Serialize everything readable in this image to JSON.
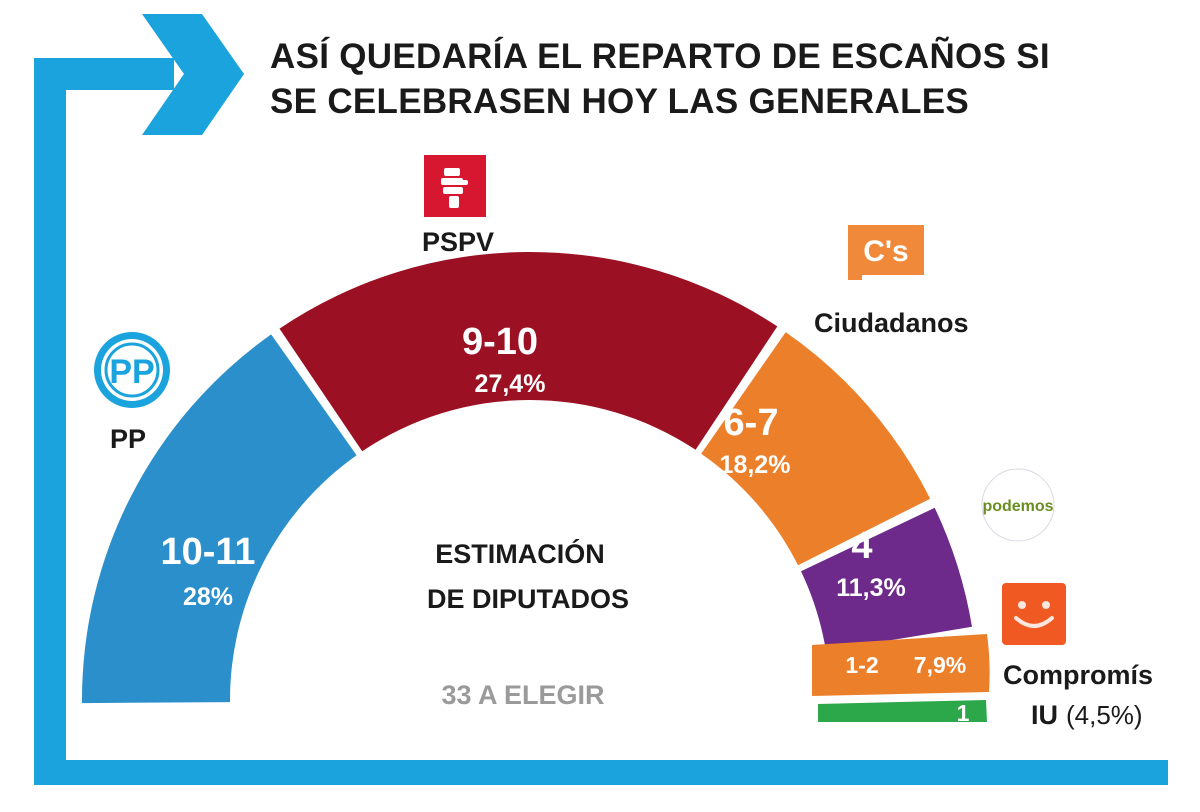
{
  "chart_data": {
    "type": "parliament-semicircle",
    "title_lines": [
      "ASÍ QUEDARÍA EL REPARTO DE ESCAÑOS SI",
      "SE CELEBRASEN HOY LAS GENERALES"
    ],
    "center_lines": [
      "ESTIMACIÓN",
      "DE DIPUTADOS"
    ],
    "total_label": "33 A ELEGIR",
    "total_seats": 33,
    "parties": [
      {
        "key": "pp",
        "name": "PP",
        "seats": "10-11",
        "pct": "28%",
        "seats_mid": 10.5,
        "color": "#2b8fcb"
      },
      {
        "key": "pspv",
        "name": "PSPV",
        "seats": "9-10",
        "pct": "27,4%",
        "seats_mid": 9.5,
        "color": "#9b1023"
      },
      {
        "key": "ciudadanos",
        "name": "Ciudadanos",
        "seats": "6-7",
        "pct": "18,2%",
        "seats_mid": 6.5,
        "color": "#ec7f2a"
      },
      {
        "key": "podemos",
        "name": "",
        "seats": "4",
        "pct": "11,3%",
        "seats_mid": 4,
        "color": "#6e2a8a"
      },
      {
        "key": "compromis",
        "name": "Compromís",
        "seats": "1-2",
        "pct": "7,9%",
        "seats_mid": 1.5,
        "color": "#ec7f2a"
      },
      {
        "key": "iu",
        "name": "IU",
        "seats": "1",
        "pct": "(4,5%)",
        "seats_mid": 1,
        "color": "#2ca84a"
      }
    ]
  },
  "colors": {
    "frame": "#1aa3dc",
    "white": "#ffffff",
    "ps_red": "#d7172f",
    "podemos_logo": "#6b8e23",
    "compromis_logo": "#f05a22"
  },
  "logos": {
    "pp": "PP",
    "ciudadanos": "C's",
    "podemos": "podemos"
  }
}
